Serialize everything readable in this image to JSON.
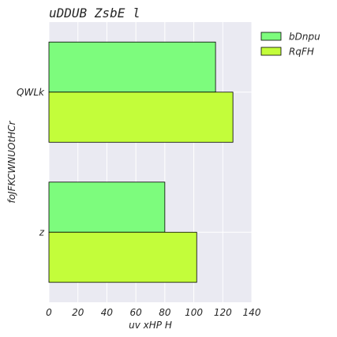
{
  "chart_data": {
    "type": "bar",
    "orientation": "horizontal",
    "title": "uDDUB ZsbE l",
    "xlabel": "uv xHP H",
    "ylabel": "foJFKCWNUOtHCr",
    "categories": [
      "QWLk",
      "z"
    ],
    "series": [
      {
        "name": "bDnpu",
        "values": [
          115,
          80
        ],
        "color": "#7dfc7d"
      },
      {
        "name": "RqFH",
        "values": [
          127,
          102
        ],
        "color": "#c3fd3a"
      }
    ],
    "xlim": [
      0,
      140
    ],
    "xticks": [
      "0",
      "20",
      "40",
      "60",
      "80",
      "100",
      "120",
      "140"
    ],
    "grid": true,
    "legend_position": "outside-top-right",
    "background": "#eaeaf2"
  }
}
